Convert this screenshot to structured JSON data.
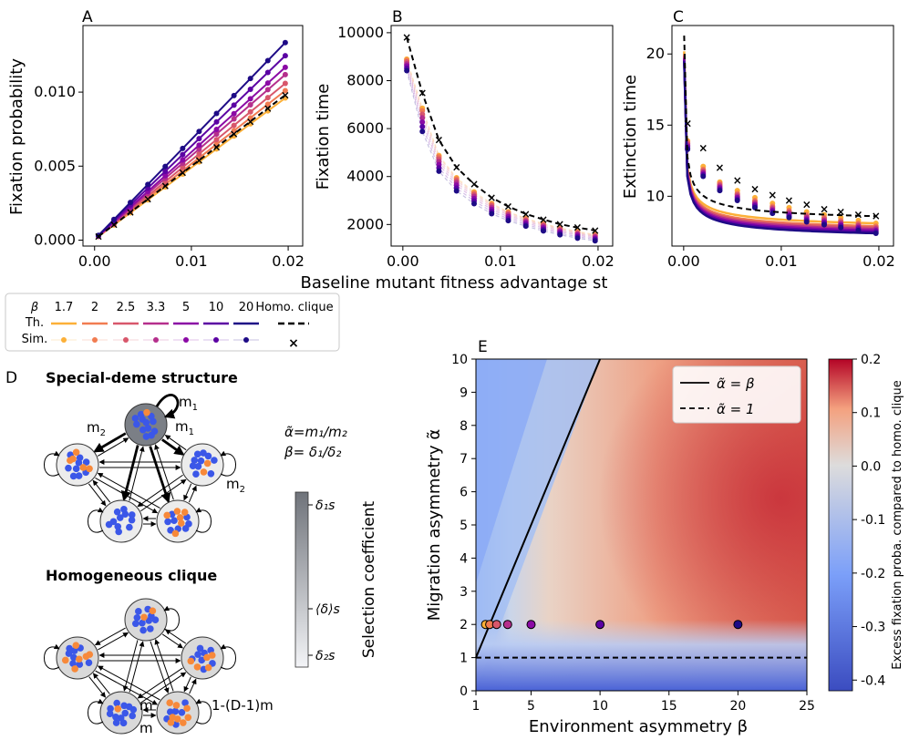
{
  "figure": {
    "panel_labels": [
      "A",
      "B",
      "C",
      "D",
      "E"
    ],
    "shared_xlabel": "Baseline mutant fitness advantage st",
    "legend": {
      "beta_symbol": "β",
      "beta_values": [
        "1.7",
        "2",
        "2.5",
        "3.3",
        "5",
        "10",
        "20"
      ],
      "homo_label": "Homo. clique",
      "row_theory": "Th.",
      "row_sim": "Sim."
    },
    "colors": [
      "#fcb038",
      "#f17c51",
      "#d8576b",
      "#b52f8c",
      "#8b0aa5",
      "#5b02a3",
      "#1e0b86"
    ]
  },
  "diagram": {
    "title_special": "Special-deme structure",
    "title_homo": "Homogeneous clique",
    "m1": "m",
    "m1_sub": "1",
    "m2": "m",
    "m2_sub": "2",
    "m_label": "m",
    "self_loop_label": "1-(D-1)m",
    "def_alpha": "α̃=m₁/m₂",
    "def_beta": "β= δ₁/δ₂",
    "selection_label": "Selection coefficient",
    "cbar_top": "δ₁s",
    "cbar_mid": "⟨δ⟩s",
    "cbar_bot": "δ₂s",
    "deme_blue": "#3b57e8",
    "deme_orange": "#f7893a"
  },
  "chart_data": [
    {
      "id": "A",
      "type": "line",
      "xlabel": "",
      "ylabel": "Fixation probability",
      "xlim": [
        -0.0012,
        0.0215
      ],
      "ylim": [
        -0.0004,
        0.0145
      ],
      "xticks": [
        "0.00",
        "0.01",
        "0.02"
      ],
      "yticks": [
        "0.000",
        "0.005",
        "0.010"
      ],
      "x": [
        0.0004,
        0.002,
        0.0037,
        0.0055,
        0.0073,
        0.0091,
        0.0108,
        0.0126,
        0.0144,
        0.0161,
        0.0179,
        0.0197
      ],
      "series": [
        {
          "name": "β=1.7",
          "slope": 0.000485
        },
        {
          "name": "β=2",
          "slope": 0.00051
        },
        {
          "name": "β=2.5",
          "slope": 0.000535
        },
        {
          "name": "β=3.3",
          "slope": 0.000565
        },
        {
          "name": "β=5",
          "slope": 0.00059
        },
        {
          "name": "β=10",
          "slope": 0.00063
        },
        {
          "name": "β=20",
          "slope": 0.000675
        },
        {
          "name": "Homo. clique",
          "slope": 0.000495
        }
      ]
    },
    {
      "id": "B",
      "type": "line",
      "xlabel": "",
      "ylabel": "Fixation time",
      "xlim": [
        -0.0012,
        0.0215
      ],
      "ylim": [
        1100,
        10300
      ],
      "xticks": [
        "0.00",
        "0.01",
        "0.02"
      ],
      "yticks": [
        "2000",
        "4000",
        "6000",
        "8000",
        "10000"
      ],
      "x": [
        0.0004,
        0.002,
        0.0037,
        0.0055,
        0.0073,
        0.0091,
        0.0108,
        0.0126,
        0.0144,
        0.0161,
        0.0179,
        0.0197
      ],
      "series": [
        {
          "name": "β=1.7",
          "values": [
            8900,
            6850,
            4880,
            3950,
            3360,
            2880,
            2530,
            2260,
            2040,
            1860,
            1710,
            1580
          ]
        },
        {
          "name": "β=2",
          "values": [
            8850,
            6750,
            4820,
            3900,
            3310,
            2840,
            2500,
            2230,
            2010,
            1830,
            1680,
            1550
          ]
        },
        {
          "name": "β=2.5",
          "values": [
            8780,
            6600,
            4730,
            3830,
            3250,
            2780,
            2450,
            2180,
            1970,
            1790,
            1640,
            1520
          ]
        },
        {
          "name": "β=3.3",
          "values": [
            8700,
            6450,
            4620,
            3740,
            3170,
            2710,
            2390,
            2130,
            1920,
            1740,
            1600,
            1480
          ]
        },
        {
          "name": "β=5",
          "values": [
            8620,
            6270,
            4500,
            3640,
            3080,
            2630,
            2320,
            2070,
            1860,
            1690,
            1550,
            1430
          ]
        },
        {
          "name": "β=10",
          "values": [
            8520,
            6080,
            4360,
            3520,
            2980,
            2540,
            2240,
            2000,
            1800,
            1630,
            1490,
            1380
          ]
        },
        {
          "name": "β=20",
          "values": [
            8420,
            5880,
            4220,
            3400,
            2870,
            2450,
            2160,
            1930,
            1730,
            1570,
            1430,
            1320
          ]
        },
        {
          "name": "Homo. clique",
          "values": [
            9800,
            7480,
            5520,
            4380,
            3680,
            3120,
            2750,
            2440,
            2210,
            2010,
            1870,
            1750
          ]
        }
      ]
    },
    {
      "id": "C",
      "type": "line",
      "xlabel": "",
      "ylabel": "Extinction time",
      "xlim": [
        -0.0012,
        0.0215
      ],
      "ylim": [
        6.5,
        22
      ],
      "xticks": [
        "0.00",
        "0.01",
        "0.02"
      ],
      "yticks": [
        "10",
        "15",
        "20"
      ],
      "x": [
        0.0004,
        0.002,
        0.0037,
        0.0055,
        0.0073,
        0.0091,
        0.0108,
        0.0126,
        0.0144,
        0.0161,
        0.0179,
        0.0197
      ],
      "series": [
        {
          "name": "β=1.7",
          "values": [
            13.9,
            12.1,
            11.0,
            10.4,
            9.9,
            9.5,
            9.2,
            8.9,
            8.7,
            8.5,
            8.3,
            8.1
          ]
        },
        {
          "name": "β=2",
          "values": [
            13.8,
            11.9,
            10.9,
            10.2,
            9.7,
            9.3,
            9.0,
            8.7,
            8.5,
            8.3,
            8.1,
            7.9
          ]
        },
        {
          "name": "β=2.5",
          "values": [
            13.7,
            11.8,
            10.8,
            10.1,
            9.6,
            9.2,
            8.9,
            8.6,
            8.4,
            8.2,
            8.0,
            7.8
          ]
        },
        {
          "name": "β=3.3",
          "values": [
            13.6,
            11.7,
            10.7,
            10.0,
            9.5,
            9.1,
            8.8,
            8.5,
            8.3,
            8.1,
            7.9,
            7.7
          ]
        },
        {
          "name": "β=5",
          "values": [
            13.5,
            11.6,
            10.6,
            9.9,
            9.4,
            9.0,
            8.7,
            8.4,
            8.2,
            8.0,
            7.8,
            7.6
          ]
        },
        {
          "name": "β=10",
          "values": [
            13.4,
            11.5,
            10.5,
            9.8,
            9.3,
            8.9,
            8.6,
            8.3,
            8.1,
            7.9,
            7.7,
            7.5
          ]
        },
        {
          "name": "β=20",
          "values": [
            13.3,
            11.4,
            10.4,
            9.7,
            9.2,
            8.8,
            8.5,
            8.2,
            8.0,
            7.8,
            7.6,
            7.4
          ]
        },
        {
          "name": "Homo. clique",
          "values": [
            15.1,
            13.4,
            12.0,
            11.1,
            10.5,
            10.1,
            9.7,
            9.4,
            9.1,
            8.9,
            8.7,
            8.6
          ]
        }
      ]
    },
    {
      "id": "E",
      "type": "heatmap",
      "xlabel": "Environment asymmetry β",
      "ylabel": "Migration asymmetry α̃",
      "xlim": [
        1,
        25
      ],
      "ylim": [
        0,
        10
      ],
      "xticks": [
        "1",
        "5",
        "10",
        "15",
        "20",
        "25"
      ],
      "yticks": [
        "0",
        "1",
        "2",
        "3",
        "4",
        "5",
        "6",
        "7",
        "8",
        "9",
        "10"
      ],
      "colorbar": {
        "label": "Excess fixation proba. compared to homo. clique",
        "range": [
          -0.42,
          0.2
        ],
        "ticks": [
          "0.2",
          "0.1",
          "0.0",
          "-0.1",
          "-0.2",
          "-0.3",
          "-0.4"
        ]
      },
      "legend": [
        "α̃ = β",
        "α̃ = 1"
      ],
      "points": [
        {
          "beta": 1.7,
          "alpha": 2
        },
        {
          "beta": 2,
          "alpha": 2
        },
        {
          "beta": 2.5,
          "alpha": 2
        },
        {
          "beta": 3.3,
          "alpha": 2
        },
        {
          "beta": 5,
          "alpha": 2
        },
        {
          "beta": 10,
          "alpha": 2
        },
        {
          "beta": 20,
          "alpha": 2
        }
      ]
    }
  ]
}
